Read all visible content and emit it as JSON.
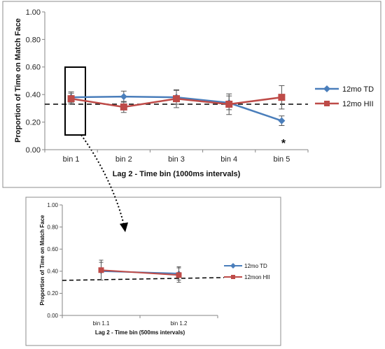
{
  "chart_data": [
    {
      "type": "line",
      "categories": [
        "bin 1",
        "bin 2",
        "bin 3",
        "bin 4",
        "bin 5"
      ],
      "xlabel": "Lag 2  - Time bin (1000ms intervals)",
      "ylabel": "Proportion of Time on Match Face",
      "ylim": [
        0,
        1
      ],
      "yticks": [
        "0.00",
        "0.20",
        "0.40",
        "0.60",
        "0.80",
        "1.00"
      ],
      "reference_line": 0.33,
      "grid": false,
      "legend_position": "right",
      "series": [
        {
          "name": "12mo TD",
          "color": "#4a7ebb",
          "marker": "diamond",
          "values": [
            0.38,
            0.385,
            0.38,
            0.34,
            0.21
          ],
          "errors": [
            0.04,
            0.04,
            0.05,
            0.05,
            0.035
          ]
        },
        {
          "name": "12mo HII",
          "color": "#be4b48",
          "marker": "square",
          "values": [
            0.37,
            0.31,
            0.37,
            0.33,
            0.38
          ],
          "errors": [
            0.04,
            0.04,
            0.065,
            0.075,
            0.085
          ]
        }
      ],
      "annotations": [
        {
          "text": "*",
          "category": "bin 5"
        }
      ]
    },
    {
      "type": "line",
      "categories": [
        "bin 1.1",
        "bin 1.2"
      ],
      "xlabel": "Lag 2  - Time bin (500ms intervals)",
      "ylabel": "Proportion of Time on Match Face",
      "ylim": [
        0,
        1
      ],
      "yticks": [
        "0.00",
        "0.20",
        "0.40",
        "0.60",
        "0.80",
        "1.00"
      ],
      "reference_line": 0.33,
      "grid": false,
      "legend_position": "right",
      "series": [
        {
          "name": "12mo TD",
          "color": "#4a7ebb",
          "marker": "diamond",
          "values": [
            0.4,
            0.38
          ],
          "errors": [
            0.08,
            0.06
          ]
        },
        {
          "name": "12mon HII",
          "color": "#be4b48",
          "marker": "square",
          "values": [
            0.41,
            0.365
          ],
          "errors": [
            0.09,
            0.065
          ]
        }
      ]
    }
  ]
}
